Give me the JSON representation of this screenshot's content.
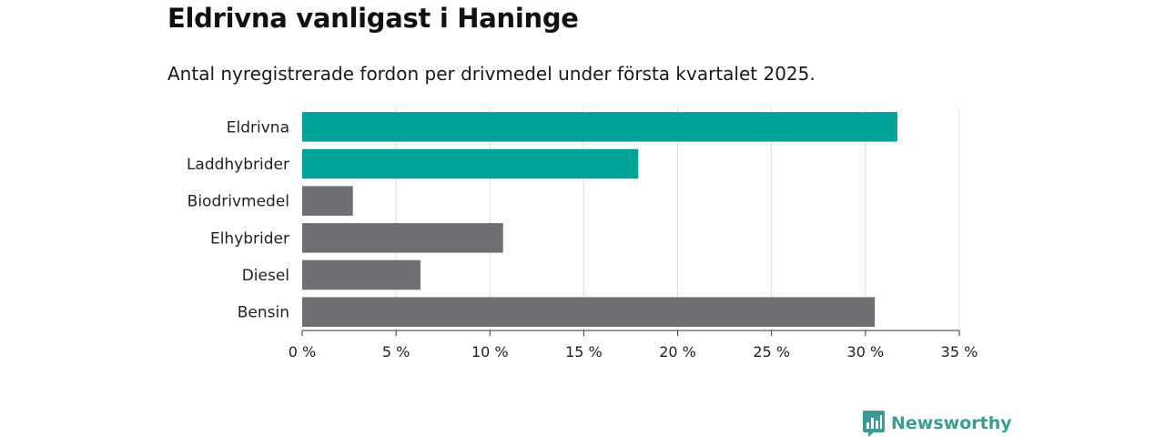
{
  "title": "Eldrivna vanligast i Haninge",
  "subtitle": "Antal nyregistrerade fordon per drivmedel under första kvartalet 2025.",
  "brand": {
    "name": "Newsworthy",
    "icon": "newsworthy-logo-icon",
    "color": "#3a9c92"
  },
  "chart_data": {
    "type": "bar",
    "orientation": "horizontal",
    "categories": [
      "Eldrivna",
      "Laddhybrider",
      "Biodrivmedel",
      "Elhybrider",
      "Diesel",
      "Bensin"
    ],
    "values": [
      31.7,
      17.9,
      2.7,
      10.7,
      6.3,
      30.5
    ],
    "colors": [
      "#00a398",
      "#00a398",
      "#6f6e73",
      "#6f6e73",
      "#6f6e73",
      "#6f6e73"
    ],
    "xlim": [
      0,
      35
    ],
    "xticks": [
      0,
      5,
      10,
      15,
      20,
      25,
      30,
      35
    ],
    "tick_labels": [
      "0 %",
      "5 %",
      "10 %",
      "15 %",
      "20 %",
      "25 %",
      "30 %",
      "35 %"
    ],
    "grid": true,
    "legend": "none"
  }
}
